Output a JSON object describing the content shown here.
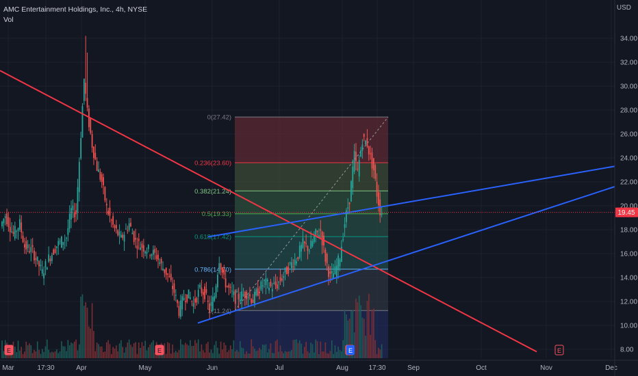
{
  "header": {
    "title": "AMC Entertainment Holdings, Inc., 4h, NYSE",
    "volume_label": "Vol"
  },
  "currency_label": "USD",
  "colors": {
    "background": "#131722",
    "grid": "#1e222d",
    "up": "#26a69a",
    "down": "#ef5350",
    "red_line": "#f23645",
    "blue_line": "#2962ff",
    "last_price": "#f23645",
    "text": "#b2b5be"
  },
  "chart_data": {
    "type": "candlestick",
    "symbol": "AMC",
    "interval": "4h",
    "exchange": "NYSE",
    "x_ticks": [
      "Mar",
      "17:30",
      "Apr",
      "May",
      "Jun",
      "Jul",
      "Aug",
      "17:30",
      "Sep",
      "Oct",
      "Nov",
      "Dec"
    ],
    "y_ticks": [
      "8.00",
      "10.00",
      "12.00",
      "14.00",
      "16.00",
      "18.00",
      "20.00",
      "22.00",
      "24.00",
      "26.00",
      "28.00",
      "30.00",
      "32.00",
      "34.00"
    ],
    "ylim": [
      7.5,
      35.5
    ],
    "last_price": "19.45",
    "price_path": [
      [
        0,
        18.3
      ],
      [
        3,
        19.2
      ],
      [
        8,
        17.6
      ],
      [
        12,
        18.5
      ],
      [
        15,
        16.6
      ],
      [
        20,
        16.2
      ],
      [
        26,
        14.4
      ],
      [
        30,
        15.6
      ],
      [
        35,
        16.7
      ],
      [
        41,
        17.4
      ],
      [
        44,
        19.6
      ],
      [
        47,
        19.4
      ],
      [
        50,
        26.0
      ],
      [
        52,
        30.6
      ],
      [
        54,
        27.8
      ],
      [
        57,
        25.1
      ],
      [
        60,
        23.2
      ],
      [
        63,
        22.0
      ],
      [
        66,
        19.8
      ],
      [
        70,
        18.3
      ],
      [
        75,
        17.2
      ],
      [
        80,
        18.5
      ],
      [
        84,
        17.0
      ],
      [
        88,
        16.6
      ],
      [
        93,
        16.2
      ],
      [
        97,
        15.8
      ],
      [
        100,
        15.0
      ],
      [
        104,
        14.2
      ],
      [
        108,
        12.8
      ],
      [
        111,
        11.2
      ],
      [
        114,
        12.4
      ],
      [
        117,
        12.5
      ],
      [
        120,
        11.8
      ],
      [
        124,
        13.0
      ],
      [
        127,
        12.7
      ],
      [
        130,
        11.3
      ],
      [
        133,
        12.5
      ],
      [
        136,
        15.6
      ],
      [
        139,
        13.8
      ],
      [
        142,
        13.0
      ],
      [
        146,
        12.3
      ],
      [
        150,
        12.5
      ],
      [
        153,
        12.7
      ],
      [
        157,
        12.1
      ],
      [
        160,
        12.9
      ],
      [
        164,
        13.6
      ],
      [
        168,
        13.2
      ],
      [
        172,
        13.4
      ],
      [
        176,
        14.2
      ],
      [
        180,
        15.0
      ],
      [
        184,
        15.6
      ],
      [
        188,
        16.8
      ],
      [
        192,
        16.4
      ],
      [
        196,
        17.6
      ],
      [
        199,
        17.9
      ],
      [
        202,
        15.6
      ],
      [
        205,
        14.0
      ],
      [
        208,
        14.5
      ],
      [
        211,
        15.8
      ],
      [
        214,
        18.6
      ],
      [
        217,
        20.6
      ],
      [
        220,
        24.2
      ],
      [
        222,
        22.8
      ],
      [
        225,
        25.6
      ],
      [
        228,
        25.2
      ],
      [
        230,
        24.0
      ],
      [
        232,
        23.0
      ],
      [
        234,
        21.0
      ],
      [
        236,
        19.6
      ],
      [
        237,
        19.45
      ]
    ],
    "volume_note": "volume histogram along the bottom",
    "fibonacci": {
      "levels": [
        {
          "ratio": "0",
          "price": 27.42,
          "label": "0(27.42)"
        },
        {
          "ratio": "0.236",
          "price": 23.6,
          "label": "0.236(23.60)"
        },
        {
          "ratio": "0.382",
          "price": 21.24,
          "label": "0.382(21.24)"
        },
        {
          "ratio": "0.5",
          "price": 19.33,
          "label": "0.5(19.33)"
        },
        {
          "ratio": "0.618",
          "price": 17.42,
          "label": "0.618(17.42)"
        },
        {
          "ratio": "0.786",
          "price": 14.7,
          "label": "0.786(14.70)"
        },
        {
          "ratio": "1",
          "price": 11.24,
          "label": "1(11.24)"
        }
      ],
      "zone_colors": [
        "#5c2a33",
        "#3b4a35",
        "#2c4d3c",
        "#254a44",
        "#22494a",
        "#2c3440",
        "#1f2a55"
      ]
    },
    "trendlines": [
      {
        "name": "descending-resistance",
        "color": "red"
      },
      {
        "name": "channel-upper",
        "color": "blue"
      },
      {
        "name": "channel-lower",
        "color": "blue"
      }
    ]
  }
}
